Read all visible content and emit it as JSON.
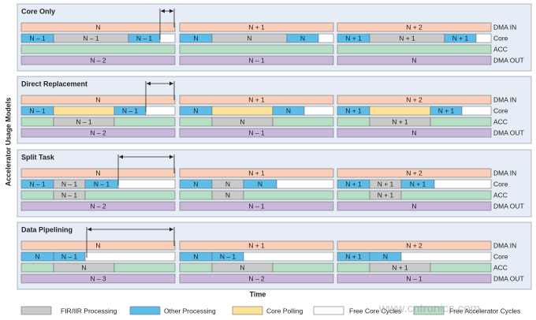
{
  "y_axis_label": "Accelerator Usage Models",
  "x_axis_label": "Time",
  "panels": [
    {
      "title": "Core Only",
      "lanes": [
        {
          "label": "DMA IN",
          "cells": [
            "N",
            "N + 1",
            "N + 2"
          ]
        },
        {
          "label": "Core",
          "cells": [
            "N – 1",
            "N – 1",
            "N – 1",
            "N",
            "N",
            "N",
            "N + 1",
            "N + 1",
            "N + 1"
          ]
        },
        {
          "label": "ACC",
          "cells": []
        },
        {
          "label": "DMA OUT",
          "cells": [
            "N – 2",
            "N – 1",
            "N"
          ]
        }
      ]
    },
    {
      "title": "Direct Replacement",
      "lanes": [
        {
          "label": "DMA IN",
          "cells": [
            "N",
            "N + 1",
            "N + 2"
          ]
        },
        {
          "label": "Core",
          "cells": [
            "N – 1",
            "N – 1",
            "N",
            "N",
            "N + 1",
            "N + 1"
          ]
        },
        {
          "label": "ACC",
          "cells": [
            "N – 1",
            "N",
            "N + 1"
          ]
        },
        {
          "label": "DMA OUT",
          "cells": [
            "N – 2",
            "N – 1",
            "N"
          ]
        }
      ]
    },
    {
      "title": "Split Task",
      "lanes": [
        {
          "label": "DMA IN",
          "cells": [
            "N",
            "N + 1",
            "N + 2"
          ]
        },
        {
          "label": "Core",
          "cells": [
            "N – 1",
            "N – 1",
            "N – 1",
            "N",
            "N",
            "N",
            "N + 1",
            "N + 1",
            "N + 1"
          ]
        },
        {
          "label": "ACC",
          "cells": [
            "N – 1",
            "N",
            "N + 1"
          ]
        },
        {
          "label": "DMA OUT",
          "cells": [
            "N – 2",
            "N – 1",
            "N"
          ]
        }
      ]
    },
    {
      "title": "Data Pipelining",
      "lanes": [
        {
          "label": "DMA IN",
          "cells": [
            "N",
            "N + 1",
            "N + 2"
          ]
        },
        {
          "label": "Core",
          "cells": [
            "N",
            "N – 1",
            "N",
            "N – 1",
            "N + 1",
            "N"
          ]
        },
        {
          "label": "ACC",
          "cells": [
            "N",
            "N",
            "N + 1"
          ]
        },
        {
          "label": "DMA OUT",
          "cells": [
            "N – 3",
            "N – 2",
            "N – 1"
          ]
        }
      ]
    }
  ],
  "legend": [
    "FIR/IIR Processing",
    "Other Processing",
    "Core Polling",
    "Free Core Cycles",
    "Free Accelerator Cycles"
  ],
  "watermark": "www.cntronics.com"
}
